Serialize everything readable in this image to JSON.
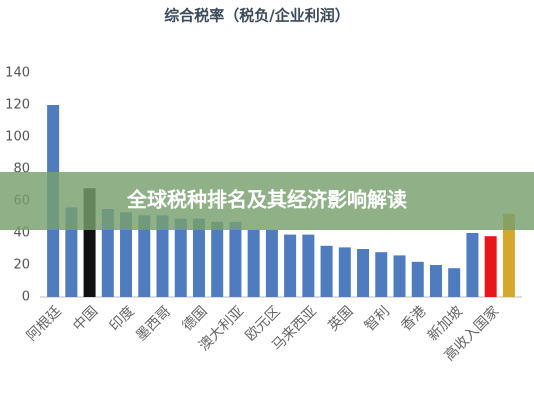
{
  "chart_data": {
    "type": "bar",
    "title": "综合税率（税负/企业利润）",
    "categories": [
      "阿根廷",
      null,
      "中国",
      null,
      "印度",
      null,
      "墨西哥",
      null,
      "德国",
      null,
      "澳大利亚",
      null,
      "欧元区",
      null,
      "马来西亚",
      null,
      "英国",
      null,
      "智利",
      null,
      "香港",
      null,
      "新加坡",
      null,
      "高收入国家",
      null
    ],
    "values": [
      120,
      56,
      68,
      55,
      53,
      51,
      51,
      49,
      49,
      47,
      47,
      42,
      42,
      39,
      39,
      32,
      31,
      30,
      28,
      26,
      22,
      20,
      18,
      40,
      38,
      52
    ],
    "colors": [
      "#4f7bbf",
      "#4f7bbf",
      "#111111",
      "#4f7bbf",
      "#4f7bbf",
      "#4f7bbf",
      "#4f7bbf",
      "#4f7bbf",
      "#4f7bbf",
      "#4f7bbf",
      "#4f7bbf",
      "#4f7bbf",
      "#4f7bbf",
      "#4f7bbf",
      "#4f7bbf",
      "#4f7bbf",
      "#4f7bbf",
      "#4f7bbf",
      "#4f7bbf",
      "#4f7bbf",
      "#4f7bbf",
      "#4f7bbf",
      "#4f7bbf",
      "#4f7bbf",
      "#e8161b",
      "#d4a82a"
    ],
    "ylim": [
      0,
      140
    ],
    "yticks": [
      0,
      20,
      40,
      60,
      80,
      100,
      120,
      140
    ],
    "grid": false
  },
  "banner_text": "全球税种排名及其经济影响解读"
}
